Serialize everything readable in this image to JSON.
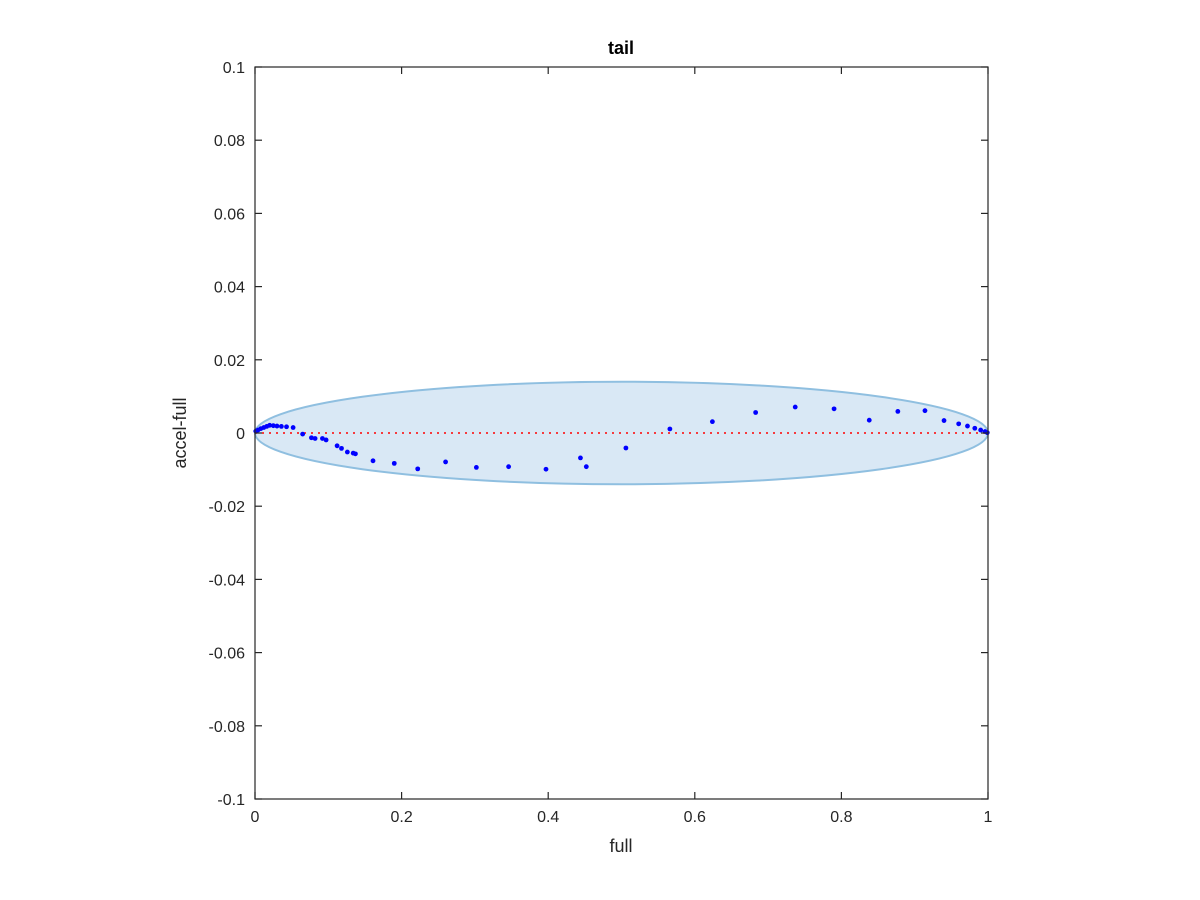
{
  "chart_data": {
    "type": "scatter",
    "title": "tail",
    "xlabel": "full",
    "ylabel": "accel-full",
    "xlim": [
      0,
      1
    ],
    "ylim": [
      -0.1,
      0.1
    ],
    "x_ticks": [
      0,
      0.2,
      0.4,
      0.6,
      0.8,
      1
    ],
    "x_tick_labels": [
      "0",
      "0.2",
      "0.4",
      "0.6",
      "0.8",
      "1"
    ],
    "y_ticks": [
      0.1,
      0.08,
      0.06,
      0.04,
      0.02,
      0,
      -0.02,
      -0.04,
      -0.06,
      -0.08,
      -0.1
    ],
    "y_tick_labels": [
      "0.1",
      "0.08",
      "0.06",
      "0.04",
      "0.02",
      "0",
      "-0.02",
      "-0.04",
      "-0.06",
      "-0.08",
      "-0.1"
    ],
    "grid": false,
    "reference_line": {
      "y": 0,
      "color": "#ff0000",
      "style": "dotted"
    },
    "ellipse": {
      "center": [
        0.5,
        0
      ],
      "x_radius": 0.5,
      "y_radius": 0.014,
      "fill": "#d9e8f5",
      "stroke": "#8fbfe0"
    },
    "series": [
      {
        "color": "#0000ff",
        "points": [
          [
            0.001,
            0.0005
          ],
          [
            0.004,
            0.0008
          ],
          [
            0.008,
            0.0012
          ],
          [
            0.012,
            0.0015
          ],
          [
            0.016,
            0.0018
          ],
          [
            0.02,
            0.0021
          ],
          [
            0.025,
            0.002
          ],
          [
            0.03,
            0.0019
          ],
          [
            0.036,
            0.0018
          ],
          [
            0.043,
            0.0017
          ],
          [
            0.052,
            0.0015
          ],
          [
            0.065,
            -0.0003
          ],
          [
            0.077,
            -0.0013
          ],
          [
            0.082,
            -0.0015
          ],
          [
            0.092,
            -0.0015
          ],
          [
            0.097,
            -0.0019
          ],
          [
            0.112,
            -0.0035
          ],
          [
            0.118,
            -0.0042
          ],
          [
            0.126,
            -0.0052
          ],
          [
            0.134,
            -0.0055
          ],
          [
            0.137,
            -0.0057
          ],
          [
            0.161,
            -0.0076
          ],
          [
            0.19,
            -0.0083
          ],
          [
            0.222,
            -0.0098
          ],
          [
            0.26,
            -0.0079
          ],
          [
            0.302,
            -0.0094
          ],
          [
            0.346,
            -0.0092
          ],
          [
            0.397,
            -0.0099
          ],
          [
            0.444,
            -0.0068
          ],
          [
            0.452,
            -0.0092
          ],
          [
            0.506,
            -0.0041
          ],
          [
            0.566,
            0.0011
          ],
          [
            0.624,
            0.0031
          ],
          [
            0.683,
            0.0056
          ],
          [
            0.737,
            0.0071
          ],
          [
            0.79,
            0.0066
          ],
          [
            0.838,
            0.0035
          ],
          [
            0.877,
            0.0059
          ],
          [
            0.914,
            0.0061
          ],
          [
            0.94,
            0.0034
          ],
          [
            0.96,
            0.0025
          ],
          [
            0.972,
            0.0019
          ],
          [
            0.982,
            0.0013
          ],
          [
            0.99,
            0.0008
          ],
          [
            0.996,
            0.0004
          ],
          [
            0.999,
            0.0001
          ]
        ]
      }
    ]
  }
}
